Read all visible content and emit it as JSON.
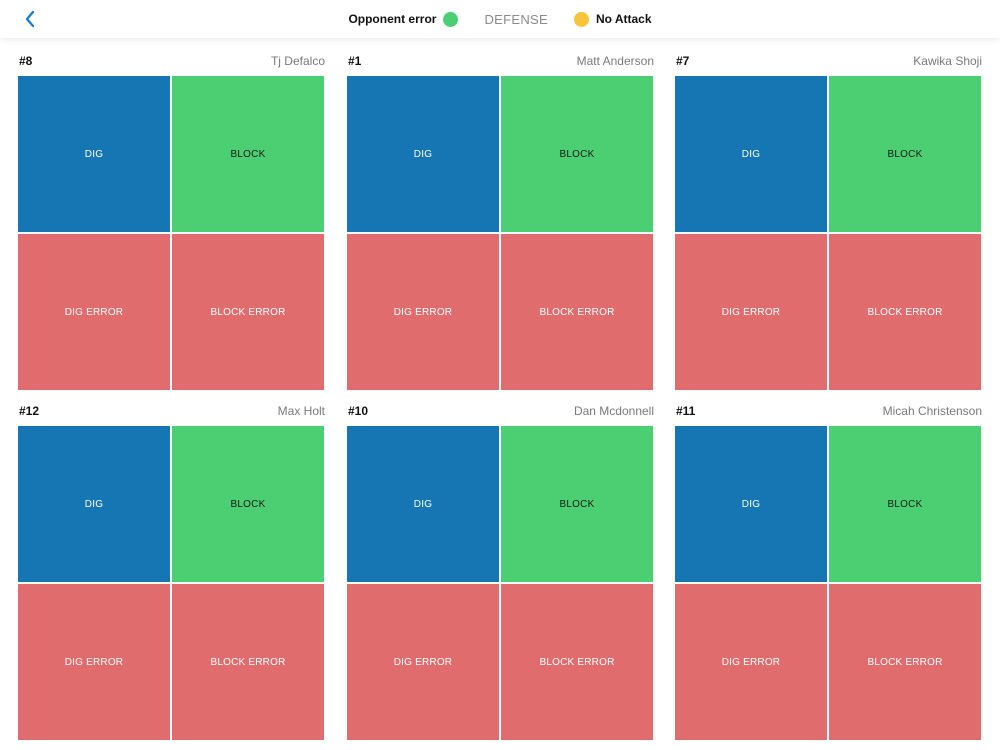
{
  "header": {
    "title": "DEFENSE",
    "left_legend": {
      "label": "Opponent error",
      "color": "#4ccf73"
    },
    "right_legend": {
      "label": "No Attack",
      "color": "#f7c43a"
    }
  },
  "colors": {
    "dig": "#1676b4",
    "block": "#4ccf73",
    "error": "#e06c6e"
  },
  "cell_labels": {
    "dig": "DIG",
    "block": "BLOCK",
    "dig_error": "DIG ERROR",
    "block_error": "BLOCK ERROR"
  },
  "players": [
    {
      "number": "#8",
      "name": "Tj Defalco"
    },
    {
      "number": "#1",
      "name": "Matt Anderson"
    },
    {
      "number": "#7",
      "name": "Kawika Shoji"
    },
    {
      "number": "#12",
      "name": "Max Holt"
    },
    {
      "number": "#10",
      "name": "Dan Mcdonnell"
    },
    {
      "number": "#11",
      "name": "Micah Christenson"
    }
  ]
}
